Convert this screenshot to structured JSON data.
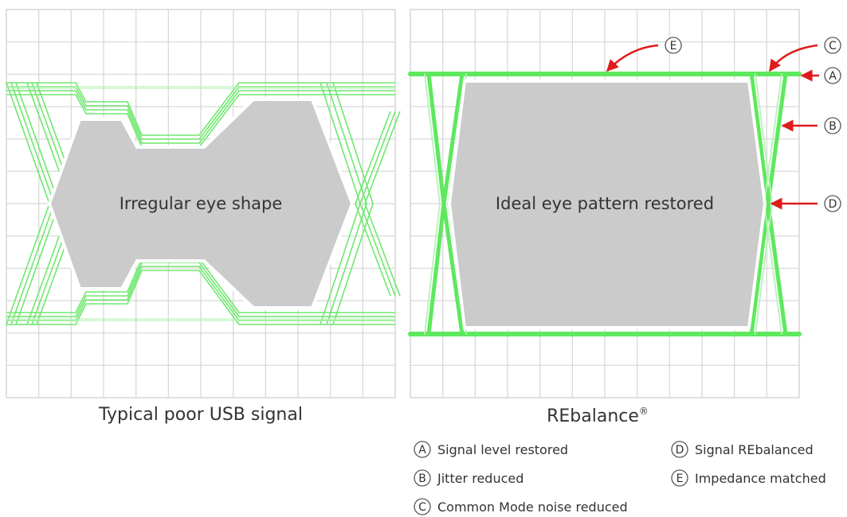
{
  "left_panel": {
    "center_label": "Irregular eye shape",
    "caption": "Typical poor USB signal"
  },
  "right_panel": {
    "center_label": "Ideal eye pattern restored",
    "caption": "REbalance",
    "caption_mark": "®",
    "markers": {
      "a": "A",
      "b": "B",
      "c": "C",
      "d": "D",
      "e": "E"
    }
  },
  "legend": {
    "a": {
      "letter": "A",
      "text": "Signal level restored"
    },
    "b": {
      "letter": "B",
      "text": "Jitter reduced"
    },
    "c": {
      "letter": "C",
      "text": "Common Mode noise reduced"
    },
    "d": {
      "letter": "D",
      "text": "Signal REbalanced"
    },
    "e": {
      "letter": "E",
      "text": "Impedance matched"
    }
  },
  "colors": {
    "grid": "#d6d6d6",
    "trace": "#5ee85e",
    "trace_light": "#b5f3b5",
    "eye_fill": "#cbcbcb",
    "arrow": "#e01b1b",
    "text": "#333333"
  }
}
